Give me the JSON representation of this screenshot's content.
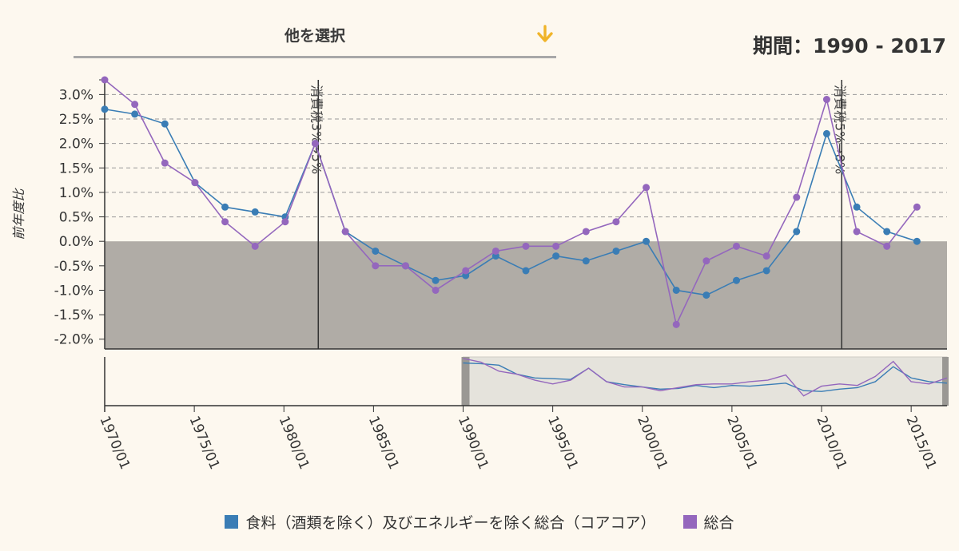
{
  "selector": {
    "label": "他を選択",
    "arrow_icon": "arrow-down-icon",
    "arrow_color": "#f0b429"
  },
  "period": {
    "label": "期間：",
    "range": "1990 - 2017"
  },
  "chart_data": {
    "type": "line",
    "ylabel": "前年度比",
    "y_ticks": [
      "3.0%",
      "2.5%",
      "2.0%",
      "1.5%",
      "1.0%",
      "0.5%",
      "0.0%",
      "-0.5%",
      "-1.0%",
      "-1.5%",
      "-2.0%"
    ],
    "ylim": [
      -2.2,
      3.3
    ],
    "xlim": [
      1989,
      2017
    ],
    "brush_ticks": [
      "1970/01",
      "1975/01",
      "1980/01",
      "1985/01",
      "1990/01",
      "1995/01",
      "2000/01",
      "2005/01",
      "2010/01",
      "2015/01"
    ],
    "brush_xlim": [
      1970,
      2017
    ],
    "brush_selection": [
      1990,
      2017
    ],
    "annotations": [
      {
        "x": 1996.1,
        "label": "消費税3%→5%"
      },
      {
        "x": 2013.5,
        "label": "消費税5%→8%"
      }
    ],
    "negative_region_color": "#b0aca6",
    "series": [
      {
        "name": "食料（酒類を除く）及びエネルギーを除く総合（コアコア）",
        "color": "#3a7db5",
        "x": [
          1989,
          1990,
          1991,
          1992,
          1993,
          1994,
          1995,
          1996,
          1997,
          1998,
          1999,
          2000,
          2001,
          2002,
          2003,
          2004,
          2005,
          2006,
          2007,
          2008,
          2009,
          2010,
          2011,
          2012,
          2013,
          2014,
          2015,
          2016,
          2017
        ],
        "values": [
          2.7,
          2.6,
          2.4,
          1.2,
          0.7,
          0.6,
          0.5,
          2.0,
          0.2,
          -0.2,
          -0.5,
          -0.8,
          -0.7,
          -0.3,
          -0.6,
          -0.3,
          -0.4,
          -0.2,
          0.0,
          -1.0,
          -1.1,
          -0.8,
          -0.6,
          0.2,
          2.2,
          0.7,
          0.2,
          0.0,
          null
        ]
      },
      {
        "name": "総合",
        "color": "#9467bd",
        "x": [
          1989,
          1990,
          1991,
          1992,
          1993,
          1994,
          1995,
          1996,
          1997,
          1998,
          1999,
          2000,
          2001,
          2002,
          2003,
          2004,
          2005,
          2006,
          2007,
          2008,
          2009,
          2010,
          2011,
          2012,
          2013,
          2014,
          2015,
          2016,
          2017
        ],
        "values": [
          3.3,
          2.8,
          1.6,
          1.2,
          0.4,
          -0.1,
          0.4,
          2.0,
          0.2,
          -0.5,
          -0.5,
          -1.0,
          -0.6,
          -0.2,
          -0.1,
          -0.1,
          0.2,
          0.4,
          1.1,
          -1.7,
          -0.4,
          -0.1,
          -0.3,
          0.9,
          2.9,
          0.2,
          -0.1,
          0.7,
          null
        ]
      }
    ]
  }
}
